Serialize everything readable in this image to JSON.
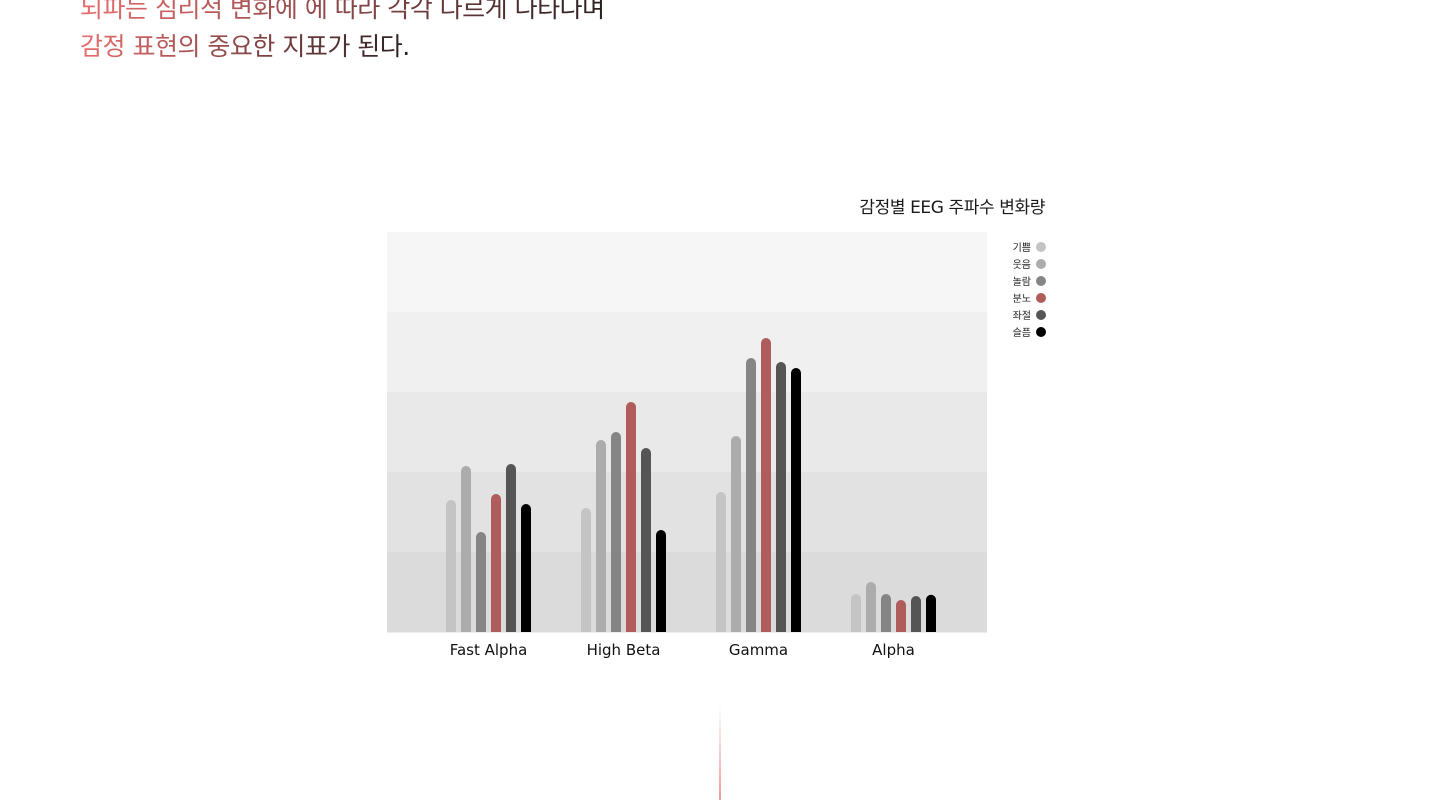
{
  "headline": {
    "parts": [
      {
        "text": "뇌파는 심리적 변화에 에 따라 각각 다르게 나타나며",
        "color": "#b05656"
      },
      {
        "text": "감정 표현의 중요한 지표가 된다.",
        "color": "#b05656"
      }
    ],
    "gradient_from": "#e86e6e",
    "gradient_to": "#2a2020"
  },
  "chart_data": {
    "type": "bar",
    "title": "감정별 EEG 주파수 변화량",
    "xlabel": "",
    "ylabel": "",
    "ylim": [
      0,
      100
    ],
    "grid": "horizontal bands",
    "legend_position": "top-right",
    "categories": [
      "Fast Alpha",
      "High Beta",
      "Gamma",
      "Alpha"
    ],
    "series": [
      {
        "name": "기쁨",
        "color": "#c4c4c4",
        "values": [
          33,
          31,
          35,
          9.5
        ]
      },
      {
        "name": "웃음",
        "color": "#acacac",
        "values": [
          41.5,
          48,
          49,
          12.5
        ]
      },
      {
        "name": "놀람",
        "color": "#858585",
        "values": [
          25,
          50,
          68.5,
          9.5
        ]
      },
      {
        "name": "분노",
        "color": "#b05c5c",
        "values": [
          34.5,
          57.5,
          73.5,
          8
        ]
      },
      {
        "name": "좌절",
        "color": "#555555",
        "values": [
          42,
          46,
          67.5,
          9
        ]
      },
      {
        "name": "슬픔",
        "color": "#000000",
        "values": [
          32,
          25.5,
          66,
          9.3
        ]
      }
    ]
  }
}
